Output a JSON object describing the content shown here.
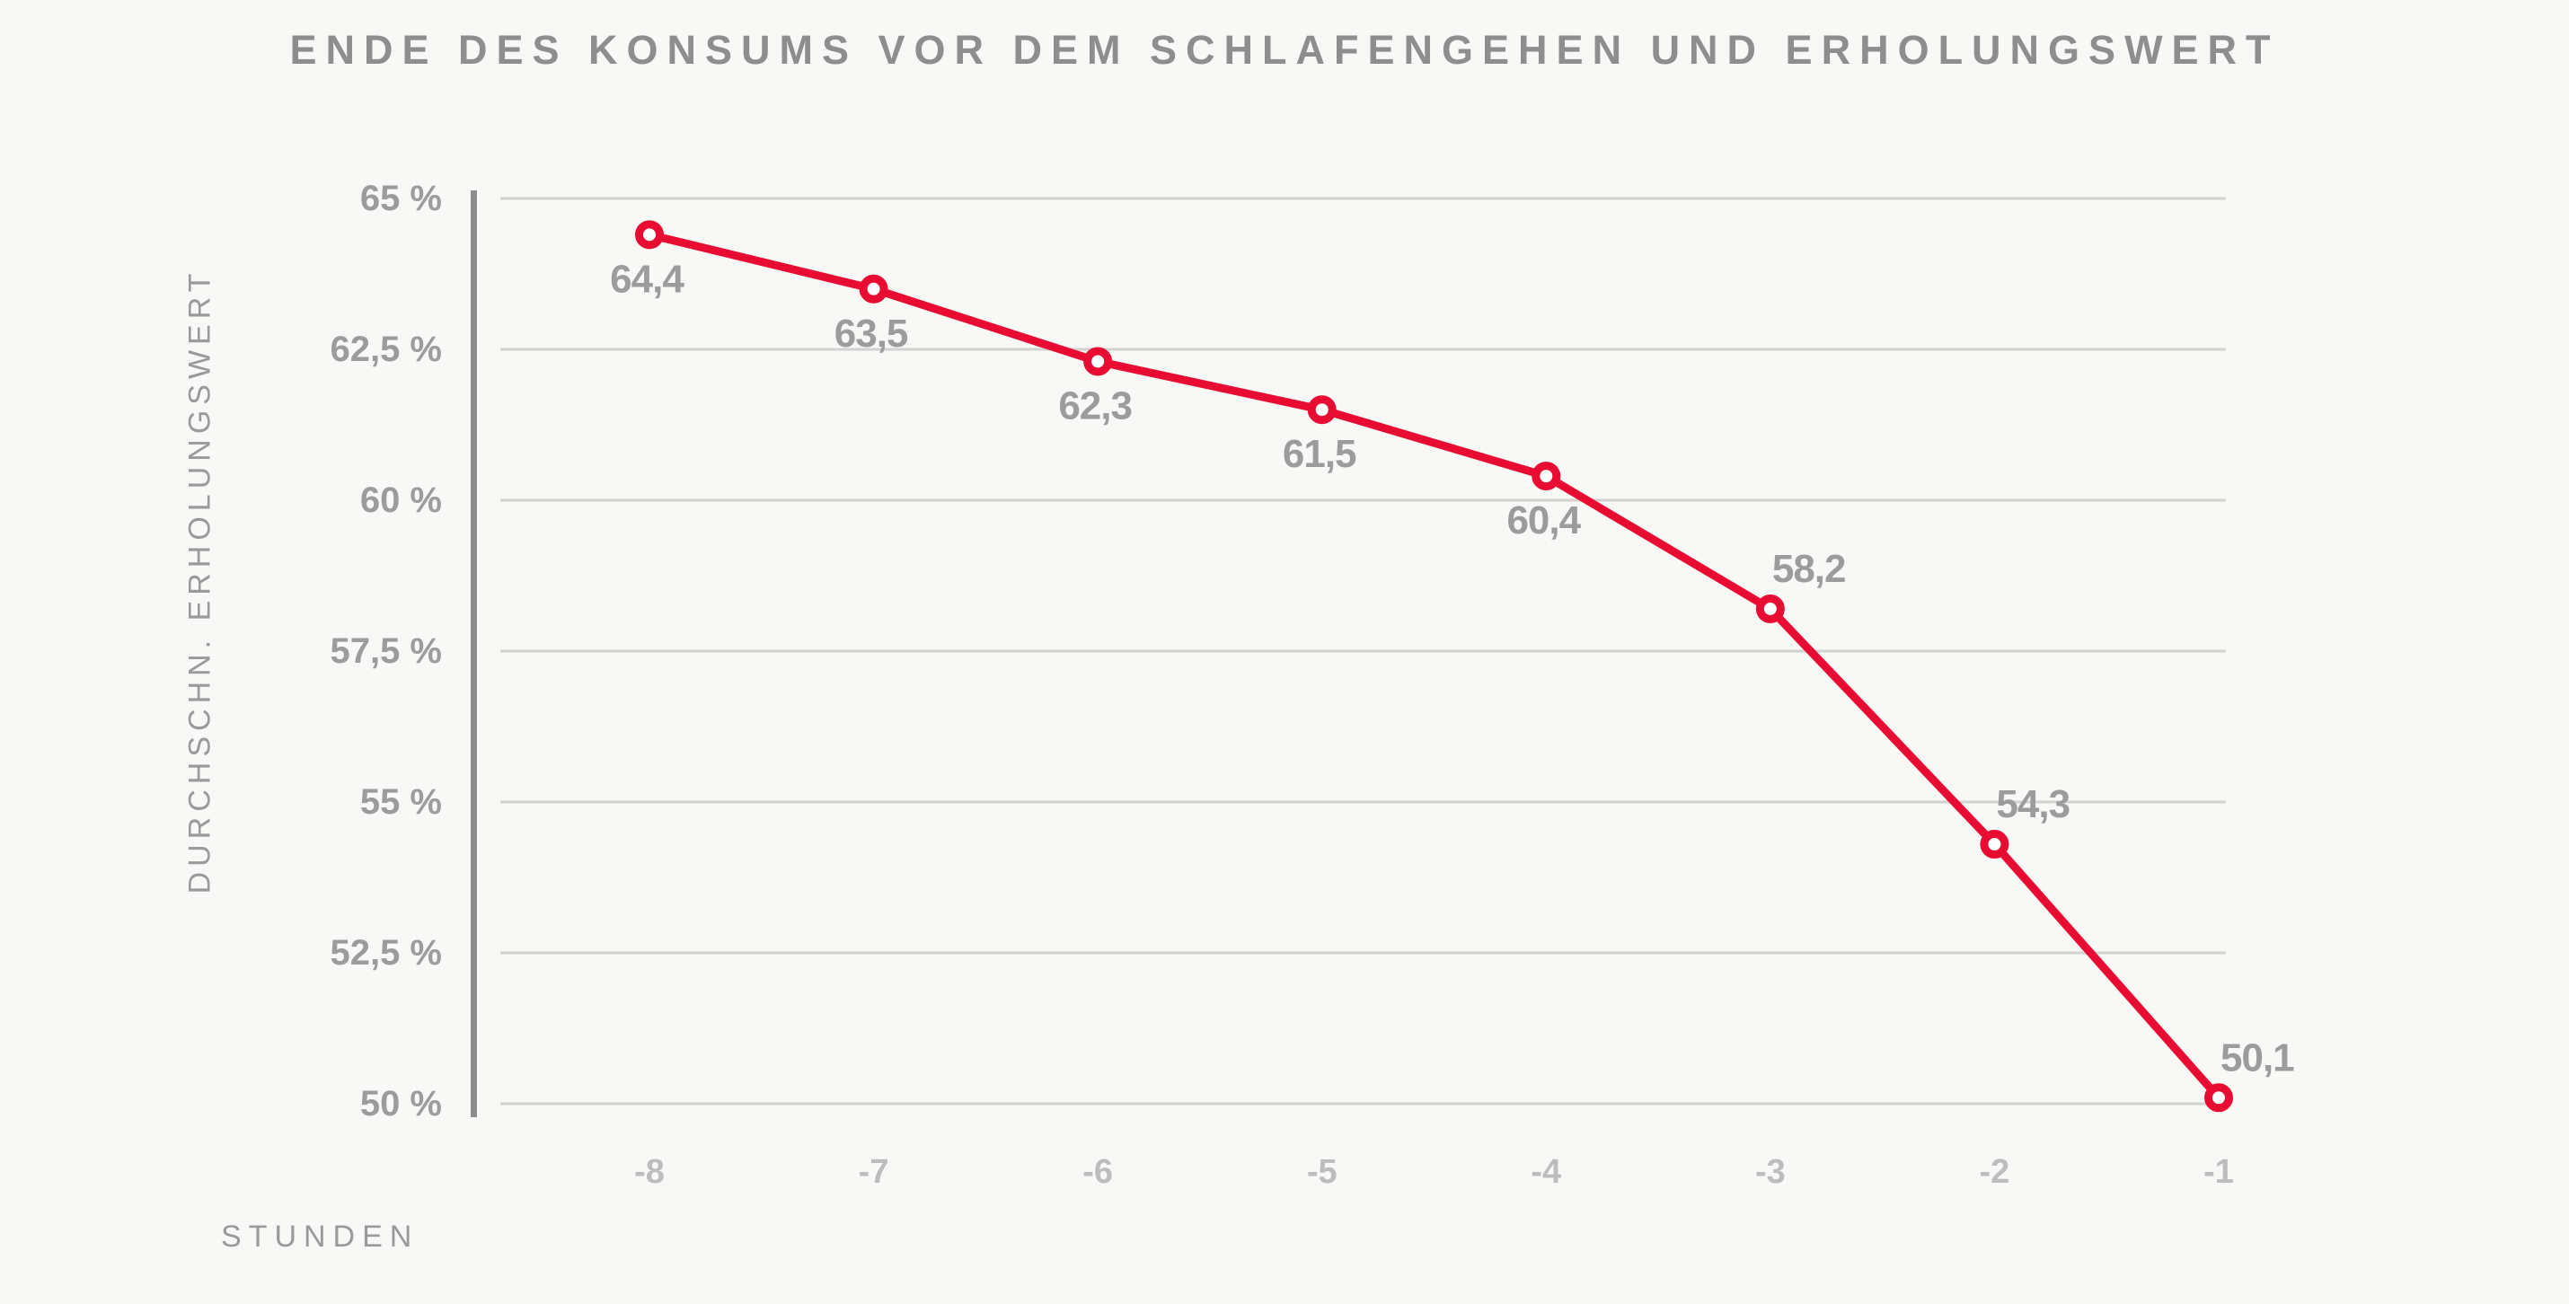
{
  "title": "ENDE DES KONSUMS VOR DEM SCHLAFENGEHEN UND ERHOLUNGSWERT",
  "chart_data": {
    "type": "line",
    "title": "ENDE DES KONSUMS VOR DEM SCHLAFENGEHEN UND ERHOLUNGSWERT",
    "xlabel": "STUNDEN",
    "ylabel": "DURCHSCHN. ERHOLUNGSWERT",
    "x": [
      -8,
      -7,
      -6,
      -5,
      -4,
      -3,
      -2,
      -1
    ],
    "xtick_labels": [
      "-8",
      "-7",
      "-6",
      "-5",
      "-4",
      "-3",
      "-2",
      "-1"
    ],
    "series": [
      {
        "name": "Durchschn. Erholungswert",
        "values": [
          64.4,
          63.5,
          62.3,
          61.5,
          60.4,
          58.2,
          54.3,
          50.1
        ],
        "point_labels": [
          "64,4",
          "63,5",
          "62,3",
          "61,5",
          "60,4",
          "58,2",
          "54,3",
          "50,1"
        ]
      }
    ],
    "ylim": [
      50,
      65
    ],
    "ytick_values": [
      65,
      62.5,
      60,
      57.5,
      55,
      52.5,
      50
    ],
    "ytick_labels": [
      "65 %",
      "62,5 %",
      "60 %",
      "57,5 %",
      "55 %",
      "52,5 %",
      "50 %"
    ],
    "grid": "horizontal",
    "legend": false,
    "marker": "open-circle"
  },
  "colors": {
    "background": "#f8f8f6",
    "line": "#e80c33",
    "marker_fill": "#ffffff",
    "grid_line": "#d2d2d0",
    "axis_bar": "#8d8d8d",
    "title_text": "#8e8e8e",
    "y_tick_text": "#9c9c9c",
    "x_tick_text": "#bdbdbd",
    "data_label_text": "#9c9c9c",
    "axis_title_text": "#9a9a9a"
  }
}
